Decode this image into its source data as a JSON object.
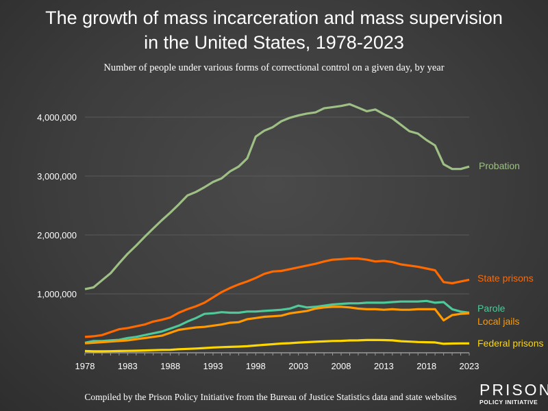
{
  "title_line1": "The growth of mass incarceration and mass supervision",
  "title_line2": "in the United States, 1978-2023",
  "subtitle": "Number of people under various forms of correctional control on a given day, by year",
  "credit": "Compiled by the Prison Policy Initiative from the Bureau of Justice Statistics data and state websites",
  "logo": {
    "line1": "PRISON",
    "line2": "POLICY INITIATIVE"
  },
  "chart_data": {
    "type": "line",
    "title": "The growth of mass incarceration and mass supervision in the United States, 1978-2023",
    "subtitle": "Number of people under various forms of correctional control on a given day, by year",
    "xlim": [
      1978,
      2023
    ],
    "ylim": [
      0,
      4500000
    ],
    "x_ticks": [
      1978,
      1983,
      1988,
      1993,
      1998,
      2003,
      2008,
      2013,
      2018,
      2023
    ],
    "y_ticks": [
      1000000,
      2000000,
      3000000,
      4000000
    ],
    "y_tick_labels": [
      "1,000,000",
      "2,000,000",
      "3,000,000",
      "4,000,000"
    ],
    "grid": "horizontal",
    "legend": "direct labels at right end of lines",
    "x": [
      1978,
      1979,
      1980,
      1981,
      1982,
      1983,
      1984,
      1985,
      1986,
      1987,
      1988,
      1989,
      1990,
      1991,
      1992,
      1993,
      1994,
      1995,
      1996,
      1997,
      1998,
      1999,
      2000,
      2001,
      2002,
      2003,
      2004,
      2005,
      2006,
      2007,
      2008,
      2009,
      2010,
      2011,
      2012,
      2013,
      2014,
      2015,
      2016,
      2017,
      2018,
      2019,
      2020,
      2021,
      2022,
      2023
    ],
    "series": [
      {
        "name": "Probation",
        "color": "#9fc085",
        "values": [
          1080000,
          1110000,
          1230000,
          1350000,
          1520000,
          1680000,
          1820000,
          1970000,
          2110000,
          2250000,
          2380000,
          2520000,
          2670000,
          2730000,
          2810000,
          2900000,
          2960000,
          3080000,
          3160000,
          3300000,
          3670000,
          3770000,
          3830000,
          3930000,
          3990000,
          4030000,
          4060000,
          4080000,
          4150000,
          4170000,
          4190000,
          4220000,
          4160000,
          4100000,
          4130000,
          4050000,
          3980000,
          3870000,
          3760000,
          3720000,
          3610000,
          3520000,
          3200000,
          3120000,
          3120000,
          3160000
        ]
      },
      {
        "name": "State prisons",
        "color": "#ff6a00",
        "values": [
          270000,
          280000,
          300000,
          350000,
          400000,
          420000,
          450000,
          480000,
          530000,
          560000,
          600000,
          680000,
          740000,
          790000,
          850000,
          940000,
          1030000,
          1100000,
          1160000,
          1210000,
          1270000,
          1340000,
          1380000,
          1390000,
          1420000,
          1450000,
          1480000,
          1510000,
          1550000,
          1580000,
          1590000,
          1600000,
          1600000,
          1580000,
          1550000,
          1560000,
          1540000,
          1500000,
          1480000,
          1460000,
          1430000,
          1400000,
          1200000,
          1180000,
          1210000,
          1240000
        ]
      },
      {
        "name": "Parole",
        "color": "#4fc99a",
        "values": [
          170000,
          200000,
          200000,
          210000,
          220000,
          250000,
          270000,
          300000,
          330000,
          360000,
          410000,
          460000,
          530000,
          590000,
          660000,
          670000,
          690000,
          680000,
          680000,
          700000,
          700000,
          710000,
          720000,
          730000,
          750000,
          800000,
          770000,
          780000,
          800000,
          820000,
          830000,
          840000,
          840000,
          850000,
          850000,
          850000,
          860000,
          870000,
          870000,
          870000,
          880000,
          850000,
          860000,
          740000,
          700000,
          680000
        ]
      },
      {
        "name": "Local jails",
        "color": "#ff9a00",
        "values": [
          160000,
          170000,
          180000,
          190000,
          200000,
          210000,
          230000,
          250000,
          270000,
          290000,
          340000,
          390000,
          410000,
          430000,
          440000,
          460000,
          480000,
          510000,
          520000,
          570000,
          590000,
          610000,
          620000,
          630000,
          670000,
          690000,
          710000,
          750000,
          770000,
          780000,
          780000,
          770000,
          750000,
          740000,
          740000,
          730000,
          740000,
          730000,
          730000,
          740000,
          740000,
          740000,
          550000,
          640000,
          660000,
          670000
        ]
      },
      {
        "name": "Federal prisons",
        "color": "#ffd700",
        "values": [
          30000,
          25000,
          24000,
          27000,
          30000,
          32000,
          35000,
          40000,
          44000,
          49000,
          50000,
          60000,
          66000,
          72000,
          80000,
          90000,
          95000,
          100000,
          105000,
          112000,
          123000,
          135000,
          145000,
          157000,
          163000,
          173000,
          180000,
          187000,
          193000,
          200000,
          202000,
          209000,
          210000,
          216000,
          217000,
          215000,
          210000,
          196000,
          189000,
          183000,
          179000,
          175000,
          152000,
          157000,
          159000,
          159000
        ]
      }
    ]
  }
}
